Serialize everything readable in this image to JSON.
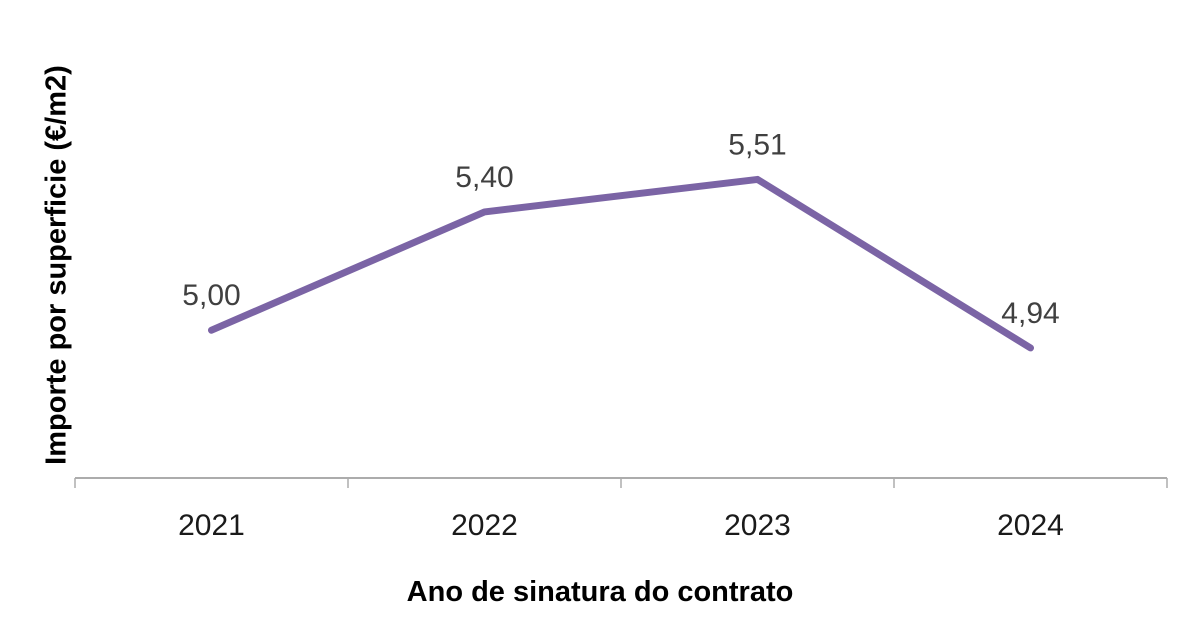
{
  "chart_data": {
    "type": "line",
    "categories": [
      "2021",
      "2022",
      "2023",
      "2024"
    ],
    "values": [
      5.0,
      5.4,
      5.51,
      4.94
    ],
    "point_labels": [
      "5,00",
      "5,40",
      "5,51",
      "4,94"
    ],
    "title": "",
    "xlabel": "Ano de sinatura do contrato",
    "ylabel": "Importe por superficie (€/m2)",
    "ylim": [
      4.5,
      6.1
    ],
    "grid": false,
    "legend": "none",
    "colors": {
      "line": "#7B64A5",
      "data_label": "#404040",
      "axis_line": "#ACACAC",
      "tick_label": "#1A1A1A",
      "axis_title": "#000000",
      "background": "#FFFFFF"
    }
  }
}
